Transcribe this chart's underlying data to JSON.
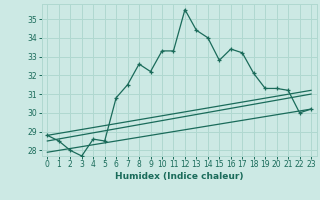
{
  "xlabel": "Humidex (Indice chaleur)",
  "ylabel": "",
  "bg_color": "#cce9e4",
  "grid_color": "#b0d8d0",
  "line_color": "#1a6b5a",
  "xlim": [
    -0.5,
    23.5
  ],
  "ylim": [
    27.7,
    35.8
  ],
  "yticks": [
    28,
    29,
    30,
    31,
    32,
    33,
    34,
    35
  ],
  "xticks": [
    0,
    1,
    2,
    3,
    4,
    5,
    6,
    7,
    8,
    9,
    10,
    11,
    12,
    13,
    14,
    15,
    16,
    17,
    18,
    19,
    20,
    21,
    22,
    23
  ],
  "main_x": [
    0,
    1,
    2,
    3,
    4,
    5,
    6,
    7,
    8,
    9,
    10,
    11,
    12,
    13,
    14,
    15,
    16,
    17,
    18,
    19,
    20,
    21,
    22,
    23
  ],
  "main_y": [
    28.8,
    28.5,
    28.0,
    27.7,
    28.6,
    28.5,
    30.8,
    31.5,
    32.6,
    32.2,
    33.3,
    33.3,
    35.5,
    34.4,
    34.0,
    32.8,
    33.4,
    33.2,
    32.1,
    31.3,
    31.3,
    31.2,
    30.0,
    30.2
  ],
  "line1_x": [
    0,
    23
  ],
  "line1_y": [
    28.8,
    31.2
  ],
  "line2_x": [
    0,
    23
  ],
  "line2_y": [
    28.5,
    31.0
  ],
  "line3_x": [
    0,
    23
  ],
  "line3_y": [
    27.9,
    30.2
  ]
}
